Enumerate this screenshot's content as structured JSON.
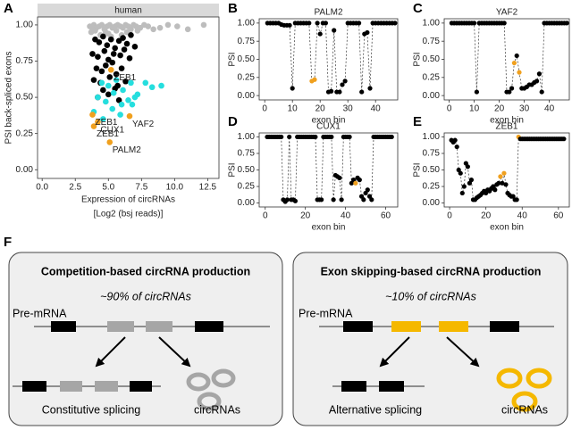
{
  "chart_data": [
    {
      "type": "scatter",
      "panel": "A",
      "strip_title": "human",
      "xlabel": "Expression of circRNAs",
      "xlabel_sub": "[Log2 (bsj reads)]",
      "ylabel": "PSI back-spliced exons",
      "xlim": [
        -0.35,
        13.35
      ],
      "ylim": [
        -0.06,
        1.055
      ],
      "grid": false,
      "xticks": [
        {
          "value": 0,
          "label": "0.0"
        },
        {
          "value": 2.5,
          "label": "2.5"
        },
        {
          "value": 5,
          "label": "5.0"
        },
        {
          "value": 7.5,
          "label": "7.5"
        },
        {
          "value": 10,
          "label": "10.0"
        },
        {
          "value": 12.5,
          "label": "12.5"
        }
      ],
      "yticks": [
        {
          "value": 0,
          "label": "0.00"
        },
        {
          "value": 0.25,
          "label": "0.25"
        },
        {
          "value": 0.5,
          "label": "0.50"
        },
        {
          "value": 0.75,
          "label": "0.75"
        },
        {
          "value": 1,
          "label": "1.00"
        }
      ],
      "series": [
        {
          "color": "#bdbdbd",
          "x": [
            3.6,
            3.9,
            4.1,
            4.3,
            4.5,
            4.7,
            4.9,
            5.1,
            5.3,
            5.5,
            5.7,
            5.9,
            6.1,
            6.3,
            6.5,
            6.7,
            6.9,
            7.1,
            7.4,
            7.7,
            8.0,
            8.4,
            8.9,
            9.5,
            10.2,
            11.0,
            12.2,
            4.0,
            4.8,
            5.6,
            6.4,
            7.2,
            3.8,
            5.0,
            6.0,
            3.7,
            4.4,
            5.2
          ],
          "y": [
            0.99,
            1.0,
            0.98,
            0.99,
            1.0,
            0.97,
            0.99,
            1.0,
            0.98,
            0.99,
            1.0,
            0.99,
            0.98,
            1.0,
            0.99,
            0.97,
            1.0,
            0.99,
            0.98,
            1.0,
            0.99,
            0.97,
            0.98,
            1.0,
            0.99,
            0.97,
            1.0,
            0.96,
            0.95,
            0.96,
            0.95,
            0.96,
            0.97,
            0.94,
            0.93,
            0.95,
            0.93,
            0.92
          ]
        },
        {
          "color": "#000000",
          "x": [
            4.0,
            4.3,
            4.6,
            4.9,
            5.2,
            5.5,
            5.8,
            6.1,
            6.4,
            6.7,
            3.8,
            4.2,
            4.7,
            5.0,
            5.4,
            5.9,
            6.2,
            6.6,
            7.0,
            4.1,
            4.5,
            4.8,
            5.3,
            5.6,
            6.0,
            3.9,
            4.4,
            5.1,
            5.7,
            6.3,
            4.6,
            5.0,
            5.5,
            4.2,
            5.8
          ],
          "y": [
            0.9,
            0.88,
            0.92,
            0.86,
            0.9,
            0.84,
            0.89,
            0.91,
            0.87,
            0.93,
            0.8,
            0.78,
            0.82,
            0.76,
            0.8,
            0.79,
            0.83,
            0.77,
            0.85,
            0.7,
            0.68,
            0.72,
            0.74,
            0.66,
            0.7,
            0.62,
            0.6,
            0.64,
            0.58,
            0.61,
            0.55,
            0.52,
            0.56,
            0.5,
            0.48
          ]
        },
        {
          "color": "#25dede",
          "x": [
            4.5,
            5.0,
            5.6,
            6.1,
            6.7,
            7.2,
            7.8,
            8.3,
            9.0,
            4.2,
            4.8,
            5.4,
            6.0,
            6.5,
            7.0,
            3.9,
            4.6,
            5.3,
            5.9,
            6.8
          ],
          "y": [
            0.6,
            0.58,
            0.62,
            0.55,
            0.6,
            0.52,
            0.6,
            0.57,
            0.58,
            0.5,
            0.47,
            0.53,
            0.45,
            0.48,
            0.5,
            0.4,
            0.35,
            0.42,
            0.38,
            0.45
          ]
        },
        {
          "color": "#f0a01e",
          "x": [
            5.2,
            3.8,
            3.9,
            4.2,
            6.6,
            5.1
          ],
          "y": [
            0.69,
            0.38,
            0.3,
            0.33,
            0.37,
            0.19
          ],
          "labels": [
            "ZEB1",
            "ZEB1",
            "ZEB1",
            "CUX1",
            "YAF2",
            "PALM2"
          ]
        }
      ]
    },
    {
      "type": "line",
      "panel": "B",
      "title": "PALM2",
      "xlabel": "exon bin",
      "ylabel": "PSI",
      "xlim": [
        -2,
        48
      ],
      "ylim": [
        -0.06,
        1.06
      ],
      "xticks": [
        0,
        10,
        20,
        30,
        40
      ],
      "grid": false,
      "yticks": [
        {
          "value": 0,
          "label": "0.00"
        },
        {
          "value": 0.25,
          "label": "0.25"
        },
        {
          "value": 0.5,
          "label": "0.50"
        },
        {
          "value": 0.75,
          "label": "0.75"
        },
        {
          "value": 1,
          "label": "1.00"
        }
      ],
      "series": [
        {
          "color": "#000000",
          "highlight": {
            "color": "#f0a01e",
            "x": [
              17,
              18
            ]
          },
          "x": [
            1,
            2,
            3,
            4,
            5,
            6,
            7,
            8,
            9,
            10,
            11,
            12,
            13,
            14,
            15,
            16,
            17,
            18,
            19,
            20,
            21,
            22,
            23,
            24,
            25,
            26,
            27,
            28,
            29,
            30,
            31,
            32,
            33,
            34,
            35,
            36,
            37,
            38,
            39,
            40,
            41,
            42,
            43,
            44,
            45,
            46,
            47
          ],
          "values": [
            1,
            1,
            1,
            1,
            1,
            0.98,
            0.97,
            0.97,
            0.97,
            0.1,
            1,
            1,
            1,
            1,
            1,
            1,
            0.2,
            0.22,
            1,
            0.85,
            1,
            1,
            0.05,
            0.06,
            0.9,
            0.05,
            0.05,
            0.15,
            0.2,
            1,
            1,
            1,
            1,
            1,
            0.05,
            0.85,
            0.87,
            0.1,
            1,
            1,
            1,
            1,
            1,
            1,
            1,
            1,
            1
          ]
        }
      ]
    },
    {
      "type": "line",
      "panel": "C",
      "title": "YAF2",
      "xlabel": "exon bin",
      "ylabel": "PSI",
      "xlim": [
        -2,
        48
      ],
      "ylim": [
        -0.06,
        1.06
      ],
      "xticks": [
        0,
        10,
        20,
        30,
        40
      ],
      "grid": false,
      "yticks": [
        {
          "value": 0,
          "label": "0.00"
        },
        {
          "value": 0.25,
          "label": "0.25"
        },
        {
          "value": 0.5,
          "label": "0.50"
        },
        {
          "value": 0.75,
          "label": "0.75"
        },
        {
          "value": 1,
          "label": "1.00"
        }
      ],
      "series": [
        {
          "color": "#000000",
          "highlight": {
            "color": "#f0a01e",
            "x": [
              26,
              28
            ]
          },
          "x": [
            1,
            2,
            3,
            4,
            5,
            6,
            7,
            8,
            9,
            10,
            11,
            12,
            13,
            14,
            15,
            16,
            17,
            18,
            19,
            20,
            21,
            22,
            23,
            24,
            25,
            26,
            27,
            28,
            29,
            30,
            31,
            32,
            33,
            34,
            35,
            36,
            37,
            38,
            39,
            40,
            41,
            42,
            43,
            44,
            45,
            46,
            47
          ],
          "values": [
            1,
            1,
            1,
            1,
            1,
            1,
            1,
            1,
            1,
            1,
            0.05,
            1,
            1,
            1,
            1,
            1,
            1,
            1,
            1,
            1,
            1,
            1,
            0.05,
            0.05,
            0.1,
            0.45,
            0.55,
            0.32,
            0.1,
            0.1,
            0.12,
            0.15,
            0.15,
            0.18,
            0.2,
            0.3,
            0.05,
            1,
            1,
            1,
            1,
            1,
            1,
            1,
            1,
            1,
            1
          ]
        }
      ]
    },
    {
      "type": "line",
      "panel": "D",
      "title": "CUX1",
      "xlabel": "exon bin",
      "ylabel": "PSI",
      "xlim": [
        -3,
        66
      ],
      "ylim": [
        -0.06,
        1.06
      ],
      "xticks": [
        0,
        20,
        40,
        60
      ],
      "grid": false,
      "yticks": [
        {
          "value": 0,
          "label": "0.00"
        },
        {
          "value": 0.25,
          "label": "0.25"
        },
        {
          "value": 0.5,
          "label": "0.50"
        },
        {
          "value": 0.75,
          "label": "0.75"
        },
        {
          "value": 1,
          "label": "1.00"
        }
      ],
      "series": [
        {
          "color": "#000000",
          "highlight": {
            "color": "#f0a01e",
            "x": [
              45
            ]
          },
          "x": [
            1,
            2,
            3,
            4,
            5,
            6,
            7,
            8,
            9,
            10,
            11,
            12,
            13,
            14,
            15,
            16,
            17,
            18,
            19,
            20,
            21,
            22,
            23,
            24,
            25,
            26,
            27,
            28,
            29,
            30,
            31,
            32,
            33,
            34,
            35,
            36,
            37,
            38,
            39,
            40,
            41,
            42,
            43,
            44,
            45,
            46,
            47,
            48,
            49,
            50,
            51,
            52,
            53,
            54,
            55,
            56,
            57,
            58,
            59,
            60,
            61,
            62,
            63
          ],
          "values": [
            1,
            1,
            1,
            1,
            1,
            1,
            1,
            1,
            0.05,
            0.02,
            0.05,
            1,
            0.05,
            0.05,
            0.03,
            1,
            1,
            1,
            1,
            1,
            1,
            1,
            1,
            1,
            1,
            0.05,
            0.05,
            0.05,
            1,
            1,
            1,
            1,
            1,
            0.05,
            0.42,
            0.4,
            0.38,
            0.05,
            1,
            1,
            1,
            1,
            0.3,
            0.35,
            0.3,
            0.38,
            0.35,
            0.1,
            0.05,
            0.15,
            0.2,
            0.1,
            0.05,
            1,
            1,
            1,
            1,
            1,
            1,
            1,
            1,
            1,
            1
          ]
        }
      ]
    },
    {
      "type": "line",
      "panel": "E",
      "title": "ZEB1",
      "xlabel": "exon bin",
      "ylabel": "PSI",
      "xlim": [
        -3,
        66
      ],
      "ylim": [
        -0.06,
        1.06
      ],
      "xticks": [
        0,
        20,
        40,
        60
      ],
      "grid": false,
      "yticks": [
        {
          "value": 0,
          "label": "0.00"
        },
        {
          "value": 0.25,
          "label": "0.25"
        },
        {
          "value": 0.5,
          "label": "0.50"
        },
        {
          "value": 0.75,
          "label": "0.75"
        },
        {
          "value": 1,
          "label": "1.00"
        }
      ],
      "series": [
        {
          "color": "#000000",
          "highlight": {
            "color": "#f0a01e",
            "x": [
              28,
              30,
              38
            ]
          },
          "x": [
            1,
            2,
            3,
            4,
            5,
            6,
            7,
            8,
            9,
            10,
            11,
            12,
            13,
            14,
            15,
            16,
            17,
            18,
            19,
            20,
            21,
            22,
            23,
            24,
            25,
            26,
            27,
            28,
            29,
            30,
            31,
            32,
            33,
            34,
            35,
            36,
            37,
            38,
            39,
            40,
            41,
            42,
            43,
            44,
            45,
            46,
            47,
            48,
            49,
            50,
            51,
            52,
            53,
            54,
            55,
            56,
            57,
            58,
            59,
            60,
            61,
            62,
            63
          ],
          "values": [
            0.95,
            0.92,
            0.95,
            0.85,
            0.5,
            0.45,
            0.15,
            0.25,
            0.6,
            0.55,
            0.3,
            0.35,
            0.05,
            0.05,
            0.08,
            0.1,
            0.12,
            0.15,
            0.18,
            0.15,
            0.2,
            0.18,
            0.22,
            0.25,
            0.2,
            0.28,
            0.3,
            0.4,
            0.3,
            0.45,
            0.28,
            0.15,
            0.12,
            0.1,
            0.1,
            0.05,
            0.05,
            1,
            0.97,
            0.97,
            0.97,
            0.97,
            0.97,
            0.97,
            0.97,
            0.97,
            0.97,
            0.97,
            0.97,
            0.97,
            0.97,
            0.97,
            0.97,
            0.97,
            0.97,
            0.97,
            0.97,
            0.97,
            0.97,
            0.97,
            0.97,
            0.97,
            0.97
          ]
        }
      ]
    }
  ],
  "diagram": {
    "panel": "F",
    "boxes": [
      {
        "title": "Competition-based circRNA production",
        "subtitle": "~90% of circRNAs",
        "premrna": "Pre-mRNA",
        "left_label": "Constitutive splicing",
        "right_label": "circRNAs"
      },
      {
        "title": "Exon skipping-based circRNA production",
        "subtitle": "~10% of circRNAs",
        "premrna": "Pre-mRNA",
        "left_label": "Alternative splicing",
        "right_label": "circRNAs"
      }
    ]
  }
}
